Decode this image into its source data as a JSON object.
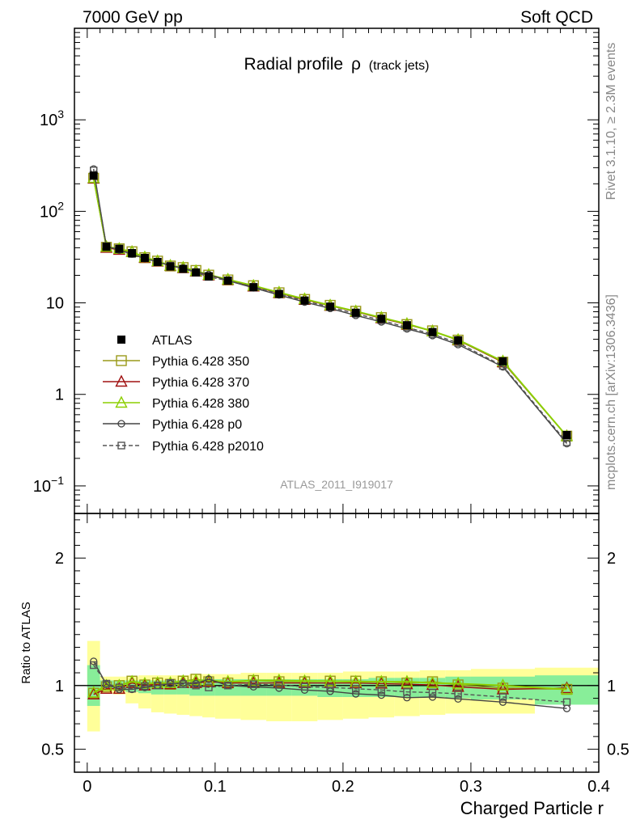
{
  "header": {
    "left": "7000 GeV pp",
    "right": "Soft QCD"
  },
  "side_text": {
    "rivet": "Rivet 3.1.10, ≥ 2.3M events",
    "mcplots": "mcplots.cern.ch [arXiv:1306.3436]"
  },
  "chart_data": {
    "type": "line",
    "title_main": "Radial profile",
    "title_symbol": "ρ",
    "title_sub": "(track jets)",
    "analysis_label": "ATLAS_2011_I919017",
    "xlabel": "Charged Particle r",
    "ylabel_ratio": "Ratio to ATLAS",
    "xlim": [
      -0.01,
      0.4
    ],
    "ylim_main": [
      0.05,
      10000
    ],
    "ylim_ratio": [
      0.32,
      2.35
    ],
    "main_yscale": "log",
    "grid": false,
    "legend_position": "left-middle",
    "x_ticks": [
      "0",
      "0.1",
      "0.2",
      "0.3",
      "0.4"
    ],
    "main_y_ticks": [
      {
        "base": "10",
        "exp": "−1",
        "plain": ""
      },
      {
        "base": "",
        "exp": "",
        "plain": "1"
      },
      {
        "base": "",
        "exp": "",
        "plain": "10"
      },
      {
        "base": "10",
        "exp": "2",
        "plain": ""
      },
      {
        "base": "10",
        "exp": "3",
        "plain": ""
      }
    ],
    "ratio_y_ticks": [
      "0.5",
      "1",
      "2"
    ],
    "x": [
      0.005,
      0.015,
      0.025,
      0.035,
      0.045,
      0.055,
      0.065,
      0.075,
      0.085,
      0.095,
      0.11,
      0.13,
      0.15,
      0.17,
      0.19,
      0.21,
      0.23,
      0.25,
      0.27,
      0.29,
      0.325,
      0.375
    ],
    "bin_edges": [
      0,
      0.01,
      0.02,
      0.03,
      0.04,
      0.05,
      0.06,
      0.07,
      0.08,
      0.09,
      0.1,
      0.12,
      0.14,
      0.16,
      0.18,
      0.2,
      0.22,
      0.24,
      0.26,
      0.28,
      0.3,
      0.35,
      0.4
    ],
    "data": {
      "name": "ATLAS",
      "values": [
        245,
        41,
        39,
        35,
        31,
        28,
        25,
        23.5,
        21.5,
        19.5,
        17.5,
        14.8,
        12.5,
        10.6,
        9.1,
        7.8,
        6.7,
        5.7,
        4.8,
        3.9,
        2.3,
        0.36
      ]
    },
    "ratio_bands": {
      "yellow_low": [
        0.64,
        0.94,
        0.93,
        0.86,
        0.82,
        0.79,
        0.78,
        0.77,
        0.76,
        0.75,
        0.74,
        0.73,
        0.72,
        0.72,
        0.73,
        0.74,
        0.75,
        0.76,
        0.77,
        0.78,
        0.78,
        0.86
      ],
      "yellow_high": [
        1.35,
        1.07,
        1.07,
        1.07,
        1.08,
        1.08,
        1.08,
        1.08,
        1.09,
        1.09,
        1.09,
        1.1,
        1.1,
        1.1,
        1.1,
        1.11,
        1.11,
        1.11,
        1.12,
        1.12,
        1.13,
        1.14
      ],
      "green_low": [
        0.84,
        0.97,
        0.97,
        0.95,
        0.94,
        0.93,
        0.93,
        0.93,
        0.92,
        0.92,
        0.92,
        0.92,
        0.92,
        0.92,
        0.91,
        0.91,
        0.91,
        0.91,
        0.91,
        0.9,
        0.89,
        0.85
      ],
      "green_high": [
        1.16,
        1.04,
        1.04,
        1.04,
        1.04,
        1.04,
        1.04,
        1.04,
        1.05,
        1.05,
        1.05,
        1.05,
        1.05,
        1.05,
        1.05,
        1.05,
        1.06,
        1.06,
        1.06,
        1.07,
        1.07,
        1.08
      ]
    },
    "series": [
      {
        "name": "Pythia 6.428 350",
        "color": "#9a9a1a",
        "marker": "square",
        "dashed": false,
        "values": [
          230,
          40.5,
          39,
          36.2,
          31.2,
          28.6,
          25.3,
          24.3,
          22.6,
          20.1,
          17.8,
          15.4,
          12.9,
          10.9,
          9.4,
          8.1,
          6.9,
          5.8,
          4.95,
          3.92,
          2.25,
          0.35
        ],
        "ratio": [
          0.94,
          0.99,
          1.0,
          1.035,
          1.005,
          1.02,
          1.01,
          1.035,
          1.05,
          1.03,
          1.02,
          1.04,
          1.03,
          1.03,
          1.035,
          1.035,
          1.03,
          1.02,
          1.03,
          1.005,
          0.98,
          0.97
        ]
      },
      {
        "name": "Pythia 6.428 370",
        "color": "#a01010",
        "marker": "triangle",
        "dashed": false,
        "values": [
          228,
          40,
          38,
          36,
          31,
          28.3,
          25.3,
          24,
          22,
          20,
          17.8,
          15.1,
          12.8,
          10.8,
          9.3,
          8,
          6.8,
          5.8,
          4.9,
          3.9,
          2.25,
          0.35
        ],
        "ratio": [
          0.93,
          0.975,
          0.975,
          1.02,
          1.0,
          1.01,
          1.01,
          1.02,
          1.02,
          1.03,
          1.02,
          1.02,
          1.02,
          1.02,
          1.02,
          1.02,
          1.015,
          1.01,
          1.005,
          0.99,
          0.97,
          0.98
        ]
      },
      {
        "name": "Pythia 6.428 380",
        "color": "#8ccf00",
        "marker": "triangle",
        "dashed": false,
        "values": [
          232,
          41,
          39,
          36,
          31.5,
          28.6,
          25.5,
          24.3,
          22.3,
          20.3,
          18.0,
          15.4,
          13.0,
          11.0,
          9.4,
          8.1,
          6.9,
          5.9,
          4.9,
          3.95,
          2.3,
          0.35
        ],
        "ratio": [
          0.945,
          1.0,
          1.0,
          1.03,
          1.015,
          1.02,
          1.02,
          1.035,
          1.04,
          1.04,
          1.03,
          1.04,
          1.04,
          1.035,
          1.035,
          1.03,
          1.03,
          1.03,
          1.02,
          1.015,
          1.0,
          0.97
        ]
      },
      {
        "name": "Pythia 6.428 p0",
        "color": "#444444",
        "marker": "circle",
        "dashed": false,
        "values": [
          290,
          41.4,
          37.8,
          34,
          30.5,
          28,
          25.5,
          24,
          21.8,
          20.4,
          17.5,
          14.6,
          12.2,
          10.2,
          8.7,
          7.3,
          6.2,
          5.2,
          4.4,
          3.5,
          2.0,
          0.29
        ],
        "ratio": [
          1.19,
          1.01,
          0.97,
          0.97,
          0.985,
          1.0,
          1.015,
          1.02,
          1.015,
          1.05,
          1.0,
          0.99,
          0.98,
          0.965,
          0.955,
          0.935,
          0.925,
          0.905,
          0.91,
          0.895,
          0.87,
          0.82
        ]
      },
      {
        "name": "Pythia 6.428 p2010",
        "color": "#555555",
        "marker": "square",
        "dashed": true,
        "values": [
          280,
          41.6,
          38.5,
          34.2,
          30.8,
          28,
          25.5,
          23.7,
          21.5,
          19.2,
          17.5,
          15.0,
          12.6,
          10.5,
          9.0,
          7.6,
          6.45,
          5.4,
          4.55,
          3.65,
          2.05,
          0.3
        ],
        "ratio": [
          1.16,
          1.015,
          0.985,
          0.975,
          0.995,
          1.0,
          1.02,
          1.01,
          1.0,
          0.985,
          1.0,
          1.01,
          1.005,
          0.99,
          0.985,
          0.975,
          0.965,
          0.95,
          0.945,
          0.935,
          0.91,
          0.87
        ]
      }
    ]
  }
}
